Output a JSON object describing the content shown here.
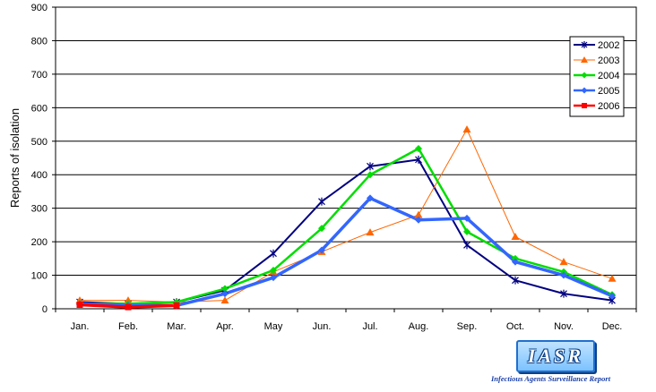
{
  "chart_data": {
    "type": "line",
    "categories": [
      "Jan.",
      "Feb.",
      "Mar.",
      "Apr.",
      "May",
      "Jun.",
      "Jul.",
      "Aug.",
      "Sep.",
      "Oct.",
      "Nov.",
      "Dec."
    ],
    "ylabel": "Reports of isolation",
    "xlabel": "",
    "ylim": [
      0,
      900
    ],
    "yticks": [
      0,
      100,
      200,
      300,
      400,
      500,
      600,
      700,
      800,
      900
    ],
    "grid": "horizontal",
    "legend_position": "top-right",
    "series": [
      {
        "name": "2002",
        "color": "#000080",
        "marker": "star",
        "values": [
          20,
          15,
          20,
          55,
          165,
          320,
          425,
          445,
          190,
          85,
          45,
          25
        ]
      },
      {
        "name": "2003",
        "color": "#ff6600",
        "marker": "triangle",
        "values": [
          25,
          25,
          20,
          25,
          110,
          170,
          228,
          280,
          535,
          215,
          140,
          90
        ]
      },
      {
        "name": "2004",
        "color": "#00dd00",
        "marker": "diamond",
        "values": [
          15,
          15,
          20,
          60,
          115,
          240,
          400,
          478,
          230,
          150,
          110,
          42
        ]
      },
      {
        "name": "2005",
        "color": "#3366ff",
        "marker": "diamond",
        "values": [
          15,
          10,
          10,
          45,
          93,
          175,
          330,
          265,
          270,
          140,
          100,
          38
        ]
      },
      {
        "name": "2006",
        "color": "#ff0000",
        "marker": "square",
        "values": [
          12,
          5,
          10,
          null,
          null,
          null,
          null,
          null,
          null,
          null,
          null,
          null
        ]
      }
    ]
  },
  "logo": {
    "text": "IASR",
    "subtitle": "Infectious Agents Surveillance Report"
  }
}
